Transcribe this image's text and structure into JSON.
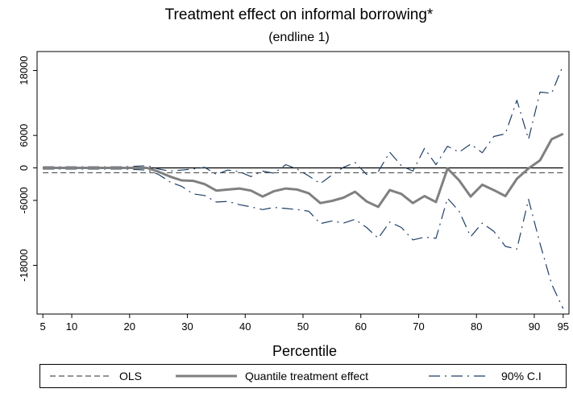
{
  "chart_data": {
    "type": "line",
    "title": "Treatment effect on informal borrowing*",
    "subtitle": "(endline 1)",
    "xlabel": "Percentile",
    "ylabel": "",
    "xlim": [
      4,
      96
    ],
    "ylim": [
      -27000,
      21500
    ],
    "x_ticks": [
      5,
      10,
      20,
      30,
      40,
      50,
      60,
      70,
      80,
      90,
      95
    ],
    "y_ticks": [
      18000,
      6000,
      0,
      -6000,
      -18000
    ],
    "grid": false,
    "legend_position": "bottom",
    "reference_lines": [
      {
        "name": "zero",
        "y": 0,
        "style": "solid"
      },
      {
        "name": "OLS",
        "y": -900,
        "style": "dashed"
      }
    ],
    "x": [
      5,
      7,
      9,
      11,
      13,
      15,
      17,
      19,
      21,
      23,
      25,
      27,
      29,
      31,
      33,
      35,
      37,
      39,
      41,
      43,
      45,
      47,
      49,
      51,
      53,
      55,
      57,
      59,
      61,
      63,
      65,
      67,
      69,
      71,
      73,
      75,
      77,
      79,
      81,
      83,
      85,
      87,
      89,
      91,
      93,
      95
    ],
    "series": [
      {
        "name": "Quantile treatment effect",
        "values": [
          0,
          0,
          0,
          0,
          0,
          0,
          0,
          0,
          0,
          0,
          -700,
          -1600,
          -2300,
          -2400,
          -3000,
          -4200,
          -4000,
          -3800,
          -4200,
          -5300,
          -4300,
          -3800,
          -4000,
          -4700,
          -6500,
          -6100,
          -5500,
          -4400,
          -6200,
          -7200,
          -4100,
          -4800,
          -6500,
          -5200,
          -6300,
          -100,
          -2300,
          -5300,
          -3100,
          -4100,
          -5200,
          -2000,
          -100,
          1400,
          5300,
          6300
        ]
      },
      {
        "name": "90% C.I",
        "values": [
          200,
          200,
          200,
          200,
          200,
          200,
          200,
          200,
          300,
          400,
          -200,
          -600,
          -400,
          -200,
          100,
          -1200,
          -400,
          -700,
          -1600,
          -600,
          -1000,
          600,
          -200,
          -1500,
          -2900,
          -1300,
          100,
          1000,
          -1200,
          -700,
          2900,
          400,
          -600,
          3600,
          600,
          4000,
          2900,
          4400,
          2800,
          5800,
          6300,
          12500,
          5300,
          14000,
          13800,
          19000
        ]
      },
      {
        "name": "90% C.I lower",
        "values": [
          -200,
          -200,
          -200,
          -200,
          -200,
          -200,
          -200,
          -200,
          -300,
          -400,
          -1200,
          -2600,
          -3400,
          -4800,
          -5100,
          -6300,
          -6200,
          -6800,
          -7200,
          -7700,
          -7300,
          -7500,
          -7700,
          -8000,
          -10300,
          -9800,
          -10200,
          -9500,
          -11000,
          -13000,
          -10000,
          -11000,
          -13300,
          -12800,
          -13000,
          -5600,
          -8000,
          -12700,
          -10200,
          -11700,
          -14500,
          -15000,
          -5800,
          -14000,
          -21500,
          -26000
        ]
      }
    ]
  },
  "legend": {
    "ols_label": "OLS",
    "qte_label": "Quantile treatment effect",
    "ci_label": "90% C.I"
  }
}
